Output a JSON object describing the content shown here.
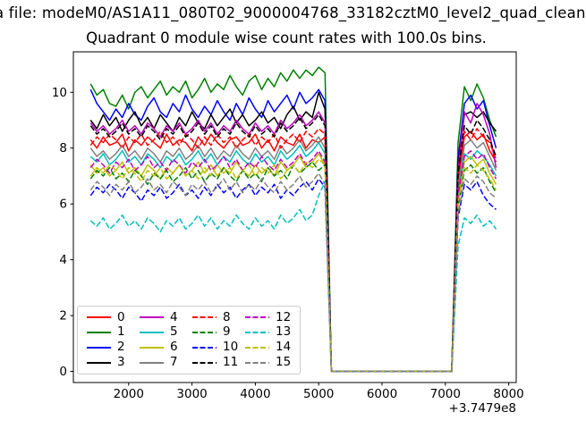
{
  "header": {
    "file_title": "a file: modeM0/AS1A11_080T02_9000004768_33182cztM0_level2_quad_clean",
    "plot_title": "Quadrant 0 module wise count rates with 100.0s bins."
  },
  "chart_data": {
    "type": "line",
    "title": "Quadrant 0 module wise count rates with 100.0s bins.",
    "xlabel": "",
    "ylabel": "",
    "x_offset_label": "+3.7479e8",
    "xlim": [
      1128,
      8118
    ],
    "ylim": [
      -0.4,
      11.45
    ],
    "xticks": [
      2000,
      3000,
      4000,
      5000,
      6000,
      7000,
      8000
    ],
    "yticks": [
      0,
      2,
      4,
      6,
      8,
      10
    ],
    "grid": false,
    "legend_position": "lower left",
    "frame_color": "#000000",
    "legend_border_color": "#cccccc",
    "bin_label": "100.0s",
    "x": [
      1400,
      1500,
      1600,
      1700,
      1800,
      1900,
      2000,
      2100,
      2200,
      2300,
      2400,
      2500,
      2600,
      2700,
      2800,
      2900,
      3000,
      3100,
      3200,
      3300,
      3400,
      3500,
      3600,
      3700,
      3800,
      3900,
      4000,
      4100,
      4200,
      4300,
      4400,
      4500,
      4600,
      4700,
      4800,
      4900,
      5000,
      5100,
      5200,
      5300,
      5400,
      5500,
      5600,
      5700,
      5800,
      5900,
      6000,
      6100,
      6200,
      6300,
      6400,
      6500,
      6600,
      6700,
      6800,
      6900,
      7000,
      7100,
      7200,
      7300,
      7400,
      7500,
      7600,
      7700,
      7800
    ],
    "series": [
      {
        "name": "0",
        "color": "#ff0000",
        "dash": false,
        "values": [
          8.3,
          8.0,
          8.4,
          8.1,
          8.2,
          8.5,
          7.9,
          8.3,
          8.1,
          8.4,
          8.2,
          8.0,
          8.5,
          8.1,
          8.3,
          8.2,
          7.9,
          8.4,
          8.1,
          8.5,
          8.2,
          8.0,
          8.3,
          8.4,
          8.1,
          8.2,
          8.5,
          8.0,
          8.3,
          7.9,
          8.4,
          8.2,
          8.1,
          8.5,
          8.0,
          8.3,
          8.2,
          8.4,
          0,
          0,
          0,
          0,
          0,
          0,
          0,
          0,
          0,
          0,
          0,
          0,
          0,
          0,
          0,
          0,
          0,
          0,
          0,
          0,
          6.9,
          8.4,
          8.6,
          8.3,
          8.5,
          7.9,
          7.5
        ]
      },
      {
        "name": "1",
        "color": "#008000",
        "dash": false,
        "values": [
          10.3,
          9.9,
          10.1,
          9.6,
          9.5,
          9.9,
          9.4,
          10.0,
          10.2,
          9.8,
          10.1,
          10.4,
          9.9,
          10.2,
          10.0,
          10.4,
          9.8,
          10.1,
          10.5,
          10.0,
          10.3,
          10.1,
          10.6,
          10.2,
          9.9,
          10.4,
          10.6,
          10.1,
          10.5,
          10.2,
          10.7,
          10.4,
          10.8,
          10.5,
          10.8,
          10.6,
          10.9,
          10.7,
          0,
          0,
          0,
          0,
          0,
          0,
          0,
          0,
          0,
          0,
          0,
          0,
          0,
          0,
          0,
          0,
          0,
          0,
          0,
          0,
          8.2,
          10.2,
          9.7,
          10.3,
          9.8,
          9.0,
          8.4
        ]
      },
      {
        "name": "2",
        "color": "#0000ff",
        "dash": false,
        "values": [
          10.1,
          9.6,
          9.3,
          9.0,
          9.4,
          9.1,
          9.6,
          9.2,
          9.0,
          9.5,
          9.8,
          9.3,
          9.1,
          9.6,
          9.3,
          9.9,
          9.4,
          9.1,
          9.5,
          9.2,
          9.7,
          9.3,
          9.0,
          9.6,
          9.2,
          9.8,
          9.4,
          9.1,
          9.7,
          9.3,
          9.6,
          9.9,
          9.4,
          10.0,
          9.6,
          9.8,
          10.1,
          9.7,
          0,
          0,
          0,
          0,
          0,
          0,
          0,
          0,
          0,
          0,
          0,
          0,
          0,
          0,
          0,
          0,
          0,
          0,
          0,
          0,
          7.6,
          9.6,
          9.9,
          9.4,
          9.7,
          8.8,
          8.0
        ]
      },
      {
        "name": "3",
        "color": "#000000",
        "dash": false,
        "values": [
          9.0,
          8.7,
          9.2,
          8.8,
          9.1,
          8.6,
          9.0,
          9.3,
          8.8,
          9.1,
          8.7,
          9.2,
          8.9,
          8.6,
          9.1,
          8.8,
          9.3,
          8.9,
          8.7,
          9.2,
          8.8,
          9.1,
          9.4,
          8.9,
          9.2,
          8.8,
          9.0,
          9.3,
          8.9,
          9.1,
          8.7,
          9.2,
          9.5,
          9.0,
          9.3,
          9.1,
          10.0,
          9.4,
          0,
          0,
          0,
          0,
          0,
          0,
          0,
          0,
          0,
          0,
          0,
          0,
          0,
          0,
          0,
          0,
          0,
          0,
          0,
          0,
          7.4,
          9.2,
          9.3,
          9.1,
          9.3,
          8.9,
          8.6
        ]
      },
      {
        "name": "4",
        "color": "#bf00bf",
        "dash": false,
        "values": [
          8.9,
          8.6,
          8.8,
          8.5,
          8.7,
          9.0,
          8.6,
          8.8,
          8.5,
          8.9,
          8.7,
          8.4,
          8.8,
          8.6,
          8.9,
          8.5,
          8.7,
          9.0,
          8.6,
          8.9,
          8.5,
          8.8,
          8.6,
          9.0,
          8.7,
          8.5,
          8.9,
          8.6,
          8.8,
          8.5,
          9.0,
          8.7,
          8.9,
          9.2,
          8.8,
          9.0,
          9.3,
          8.9,
          0,
          0,
          0,
          0,
          0,
          0,
          0,
          0,
          0,
          0,
          0,
          0,
          0,
          0,
          0,
          0,
          0,
          0,
          0,
          0,
          7.2,
          9.3,
          8.9,
          9.6,
          9.2,
          8.5,
          7.3
        ]
      },
      {
        "name": "5",
        "color": "#00bfbf",
        "dash": false,
        "values": [
          7.7,
          7.5,
          7.8,
          7.4,
          7.6,
          7.9,
          7.5,
          7.7,
          7.4,
          7.8,
          7.6,
          7.3,
          7.7,
          7.5,
          7.8,
          7.4,
          7.6,
          7.9,
          7.5,
          7.8,
          7.4,
          7.7,
          7.5,
          7.9,
          7.6,
          7.4,
          7.8,
          7.5,
          7.7,
          7.4,
          7.9,
          7.6,
          7.8,
          8.1,
          7.7,
          7.9,
          8.2,
          7.8,
          0,
          0,
          0,
          0,
          0,
          0,
          0,
          0,
          0,
          0,
          0,
          0,
          0,
          0,
          0,
          0,
          0,
          0,
          0,
          0,
          6.4,
          7.8,
          7.6,
          7.9,
          7.7,
          7.4,
          7.0
        ]
      },
      {
        "name": "6",
        "color": "#bfbf00",
        "dash": false,
        "values": [
          7.4,
          7.1,
          7.3,
          7.0,
          7.2,
          7.5,
          7.1,
          7.3,
          7.0,
          7.4,
          7.2,
          6.9,
          7.3,
          7.1,
          7.4,
          7.0,
          7.2,
          7.5,
          7.1,
          7.4,
          7.0,
          7.3,
          7.1,
          7.5,
          7.2,
          7.0,
          7.4,
          7.1,
          7.3,
          7.0,
          7.5,
          7.2,
          7.4,
          7.7,
          7.3,
          7.5,
          7.8,
          7.4,
          0,
          0,
          0,
          0,
          0,
          0,
          0,
          0,
          0,
          0,
          0,
          0,
          0,
          0,
          0,
          0,
          0,
          0,
          0,
          0,
          6.1,
          7.5,
          7.7,
          7.4,
          7.6,
          7.1,
          6.7
        ]
      },
      {
        "name": "7",
        "color": "#808080",
        "dash": false,
        "values": [
          8.0,
          7.7,
          7.9,
          7.6,
          7.8,
          8.1,
          7.7,
          7.9,
          7.6,
          8.0,
          7.8,
          7.5,
          7.9,
          7.7,
          8.0,
          7.6,
          7.8,
          8.1,
          7.7,
          8.0,
          7.6,
          7.9,
          7.7,
          8.1,
          7.8,
          7.6,
          8.0,
          7.7,
          7.9,
          7.6,
          8.1,
          7.8,
          8.0,
          8.3,
          7.9,
          8.1,
          8.4,
          8.0,
          0,
          0,
          0,
          0,
          0,
          0,
          0,
          0,
          0,
          0,
          0,
          0,
          0,
          0,
          0,
          0,
          0,
          0,
          0,
          0,
          6.6,
          8.1,
          8.3,
          8.0,
          8.2,
          7.7,
          7.2
        ]
      },
      {
        "name": "8",
        "color": "#ff0000",
        "dash": true,
        "values": [
          8.1,
          8.4,
          8.2,
          8.5,
          8.3,
          8.0,
          8.4,
          8.2,
          8.5,
          8.1,
          8.3,
          8.6,
          8.2,
          8.4,
          8.1,
          8.5,
          8.3,
          8.0,
          8.4,
          8.1,
          8.5,
          8.2,
          8.4,
          8.0,
          8.3,
          8.5,
          8.1,
          8.4,
          8.2,
          8.5,
          8.0,
          8.3,
          8.5,
          8.2,
          8.6,
          8.4,
          8.7,
          8.5,
          0,
          0,
          0,
          0,
          0,
          0,
          0,
          0,
          0,
          0,
          0,
          0,
          0,
          0,
          0,
          0,
          0,
          0,
          0,
          0,
          7.0,
          8.6,
          8.3,
          8.7,
          8.4,
          8.2,
          7.6
        ]
      },
      {
        "name": "9",
        "color": "#008000",
        "dash": true,
        "values": [
          6.9,
          7.2,
          7.0,
          7.3,
          6.9,
          7.1,
          6.8,
          7.2,
          7.0,
          6.7,
          7.1,
          6.9,
          7.2,
          6.8,
          7.0,
          7.3,
          6.9,
          7.2,
          6.8,
          7.1,
          6.9,
          7.3,
          7.0,
          6.8,
          7.2,
          6.9,
          7.1,
          6.8,
          7.3,
          7.0,
          7.2,
          6.9,
          7.4,
          7.1,
          7.3,
          7.5,
          7.2,
          7.4,
          0,
          0,
          0,
          0,
          0,
          0,
          0,
          0,
          0,
          0,
          0,
          0,
          0,
          0,
          0,
          0,
          0,
          0,
          0,
          0,
          5.9,
          7.2,
          7.4,
          7.1,
          7.3,
          6.8,
          6.4
        ]
      },
      {
        "name": "10",
        "color": "#0000ff",
        "dash": true,
        "values": [
          6.3,
          6.6,
          6.4,
          6.7,
          6.5,
          6.2,
          6.6,
          6.4,
          6.1,
          6.5,
          6.3,
          6.6,
          6.2,
          6.4,
          6.7,
          6.3,
          6.5,
          6.2,
          6.6,
          6.3,
          6.7,
          6.4,
          6.6,
          6.2,
          6.5,
          6.7,
          6.3,
          6.6,
          6.4,
          6.7,
          6.2,
          6.5,
          6.3,
          6.6,
          6.8,
          6.5,
          6.9,
          6.6,
          0,
          0,
          0,
          0,
          0,
          0,
          0,
          0,
          0,
          0,
          0,
          0,
          0,
          0,
          0,
          0,
          0,
          0,
          0,
          0,
          5.5,
          6.7,
          6.5,
          6.8,
          6.3,
          6.0,
          5.8
        ]
      },
      {
        "name": "11",
        "color": "#000000",
        "dash": true,
        "values": [
          8.8,
          8.5,
          8.7,
          8.4,
          8.6,
          8.9,
          8.5,
          8.7,
          8.4,
          8.8,
          8.6,
          8.3,
          8.7,
          8.5,
          8.8,
          8.4,
          8.6,
          8.9,
          8.5,
          8.8,
          8.4,
          8.7,
          8.5,
          8.9,
          8.6,
          8.4,
          8.8,
          8.5,
          8.7,
          8.4,
          8.9,
          8.6,
          8.8,
          9.1,
          8.7,
          8.9,
          9.2,
          8.8,
          0,
          0,
          0,
          0,
          0,
          0,
          0,
          0,
          0,
          0,
          0,
          0,
          0,
          0,
          0,
          0,
          0,
          0,
          0,
          0,
          7.1,
          8.8,
          8.5,
          9.0,
          8.7,
          8.3,
          7.7
        ]
      },
      {
        "name": "12",
        "color": "#bf00bf",
        "dash": true,
        "values": [
          7.3,
          7.6,
          7.4,
          7.1,
          7.5,
          7.3,
          7.6,
          7.2,
          7.4,
          7.7,
          7.3,
          7.5,
          7.2,
          7.6,
          7.4,
          7.1,
          7.5,
          7.3,
          7.6,
          7.2,
          7.4,
          7.7,
          7.3,
          7.6,
          7.2,
          7.5,
          7.3,
          7.7,
          7.4,
          7.2,
          7.6,
          7.3,
          7.5,
          7.8,
          7.4,
          7.6,
          7.9,
          7.5,
          0,
          0,
          0,
          0,
          0,
          0,
          0,
          0,
          0,
          0,
          0,
          0,
          0,
          0,
          0,
          0,
          0,
          0,
          0,
          0,
          6.3,
          7.7,
          7.9,
          7.6,
          7.8,
          7.3,
          6.9
        ]
      },
      {
        "name": "13",
        "color": "#00bfbf",
        "dash": true,
        "values": [
          5.4,
          5.2,
          5.5,
          5.1,
          5.3,
          5.6,
          5.2,
          5.4,
          5.1,
          5.5,
          5.3,
          5.0,
          5.4,
          5.2,
          5.5,
          5.1,
          5.3,
          5.6,
          5.2,
          5.5,
          5.1,
          5.4,
          5.2,
          5.6,
          5.3,
          5.1,
          5.5,
          5.2,
          5.4,
          5.1,
          5.6,
          5.3,
          5.5,
          5.8,
          5.4,
          5.6,
          6.3,
          6.8,
          0,
          0,
          0,
          0,
          0,
          0,
          0,
          0,
          0,
          0,
          0,
          0,
          0,
          0,
          0,
          0,
          0,
          0,
          0,
          0,
          4.5,
          5.5,
          5.3,
          5.6,
          5.2,
          5.4,
          5.1
        ]
      },
      {
        "name": "14",
        "color": "#bfbf00",
        "dash": true,
        "values": [
          7.0,
          7.3,
          7.1,
          7.4,
          7.2,
          6.9,
          7.3,
          7.1,
          6.8,
          7.2,
          7.0,
          7.3,
          6.9,
          7.1,
          7.4,
          7.0,
          7.2,
          6.9,
          7.3,
          7.0,
          7.4,
          7.1,
          7.3,
          6.9,
          7.2,
          7.4,
          7.0,
          7.3,
          7.1,
          7.4,
          6.9,
          7.2,
          7.4,
          7.1,
          7.5,
          7.3,
          7.6,
          7.4,
          0,
          0,
          0,
          0,
          0,
          0,
          0,
          0,
          0,
          0,
          0,
          0,
          0,
          0,
          0,
          0,
          0,
          0,
          0,
          0,
          6.0,
          7.3,
          7.1,
          7.4,
          7.2,
          6.9,
          6.5
        ]
      },
      {
        "name": "15",
        "color": "#808080",
        "dash": true,
        "values": [
          6.5,
          6.8,
          6.6,
          6.3,
          6.7,
          6.5,
          6.8,
          6.4,
          6.6,
          6.9,
          6.5,
          6.7,
          6.4,
          6.8,
          6.6,
          6.3,
          6.7,
          6.5,
          6.8,
          6.4,
          6.6,
          6.9,
          6.5,
          6.8,
          6.4,
          6.7,
          6.5,
          6.9,
          6.6,
          6.4,
          6.8,
          6.5,
          6.7,
          7.0,
          6.6,
          6.8,
          7.1,
          6.7,
          0,
          0,
          0,
          0,
          0,
          0,
          0,
          0,
          0,
          0,
          0,
          0,
          0,
          0,
          0,
          0,
          0,
          0,
          0,
          0,
          5.6,
          6.9,
          6.7,
          7.0,
          6.8,
          6.4,
          6.2
        ]
      }
    ]
  }
}
